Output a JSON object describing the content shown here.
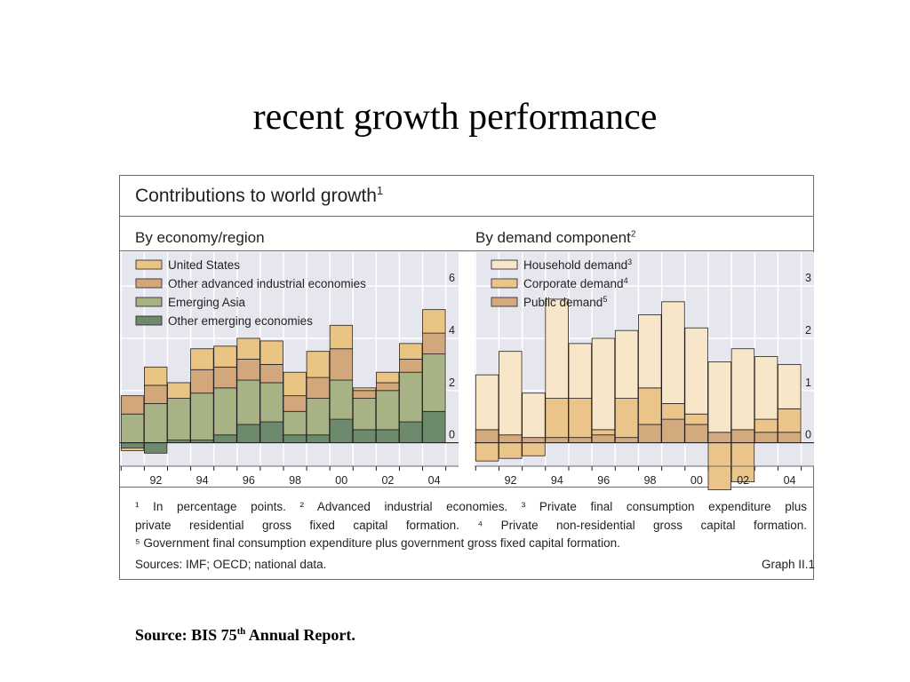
{
  "slide": {
    "title": "recent growth performance",
    "source_prefix": "Source: BIS 75",
    "source_sup": "th",
    "source_suffix": " Annual Report."
  },
  "graph": {
    "title": "Contributions to world growth",
    "title_sup": "1",
    "graph_id": "Graph II.1",
    "sources": "Sources: IMF; OECD; national data.",
    "footnote_lines": [
      "¹ In percentage points.   ² Advanced industrial economies.   ³ Private final consumption expenditure plus",
      "private residential gross fixed capital formation.   ⁴ Private non-residential gross capital formation.",
      "⁵ Government final consumption expenditure plus government gross fixed capital formation."
    ]
  },
  "colors": {
    "plot_bg": "#e6e6ef",
    "grid": "#ffffff",
    "us": "#e9c483",
    "other_adv": "#d2a77c",
    "em_asia": "#a7b385",
    "other_em": "#6e8a6c",
    "household": "#f8e6c8",
    "corporate": "#ebc48a",
    "public": "#d3aa7d"
  },
  "chart_data": [
    {
      "type": "bar",
      "stacked": true,
      "title": "By economy/region",
      "x": [
        1991,
        1992,
        1993,
        1994,
        1995,
        1996,
        1997,
        1998,
        1999,
        2000,
        2001,
        2002,
        2003,
        2004
      ],
      "tick_labels": [
        "92",
        "94",
        "96",
        "98",
        "00",
        "02",
        "04"
      ],
      "y_ticks": [
        "0",
        "2",
        "4",
        "6"
      ],
      "ylim": [
        -0.9,
        7.3
      ],
      "series": [
        {
          "name": "Other emerging economies",
          "color_key": "other_em",
          "values": [
            -0.2,
            -0.4,
            0.1,
            0.1,
            0.3,
            0.7,
            0.8,
            0.3,
            0.3,
            0.9,
            0.5,
            0.5,
            0.8,
            1.2
          ]
        },
        {
          "name": "Emerging Asia",
          "color_key": "em_asia",
          "values": [
            1.1,
            1.5,
            1.6,
            1.8,
            1.8,
            1.7,
            1.5,
            0.9,
            1.4,
            1.5,
            1.2,
            1.5,
            1.9,
            2.2
          ]
        },
        {
          "name": "Other advanced industrial economies",
          "color_key": "other_adv",
          "values": [
            0.7,
            0.7,
            0.0,
            0.9,
            0.8,
            0.8,
            0.7,
            0.6,
            0.8,
            1.2,
            0.3,
            0.3,
            0.5,
            0.8
          ]
        },
        {
          "name": "United States",
          "color_key": "us",
          "values": [
            -0.1,
            0.7,
            0.6,
            0.8,
            0.8,
            0.8,
            0.9,
            0.9,
            1.0,
            0.9,
            0.1,
            0.4,
            0.6,
            0.9
          ]
        }
      ],
      "legend_order": [
        "United States",
        "Other advanced industrial economies",
        "Emerging Asia",
        "Other emerging economies"
      ],
      "legend": "top-left",
      "grid": true
    },
    {
      "type": "bar",
      "stacked": true,
      "title": "By demand component",
      "title_sup": "2",
      "x": [
        1991,
        1992,
        1993,
        1994,
        1995,
        1996,
        1997,
        1998,
        1999,
        2000,
        2001,
        2002,
        2003,
        2004
      ],
      "tick_labels": [
        "92",
        "94",
        "96",
        "98",
        "00",
        "02",
        "04"
      ],
      "y_ticks": [
        "0",
        "1",
        "2",
        "3"
      ],
      "ylim": [
        -0.45,
        3.65
      ],
      "series": [
        {
          "name": "Public demand",
          "color_key": "public",
          "values": [
            0.25,
            0.15,
            0.1,
            0.1,
            0.1,
            0.15,
            0.1,
            0.35,
            0.45,
            0.35,
            0.2,
            0.25,
            0.2,
            0.2
          ]
        },
        {
          "name": "Corporate demand",
          "color_key": "corporate",
          "values": [
            -0.35,
            -0.3,
            -0.25,
            0.75,
            0.75,
            0.1,
            0.75,
            0.7,
            0.3,
            0.2,
            -0.9,
            -0.75,
            0.25,
            0.45
          ]
        },
        {
          "name": "Household demand",
          "color_key": "household",
          "values": [
            1.05,
            1.6,
            0.85,
            1.9,
            1.05,
            1.75,
            1.3,
            1.4,
            1.95,
            1.65,
            1.35,
            1.55,
            1.2,
            0.85
          ]
        }
      ],
      "legend_order": [
        "Household demand",
        "Corporate demand",
        "Public demand"
      ],
      "legend_sups": [
        "3",
        "4",
        "5"
      ],
      "legend": "top-left",
      "grid": true
    }
  ]
}
